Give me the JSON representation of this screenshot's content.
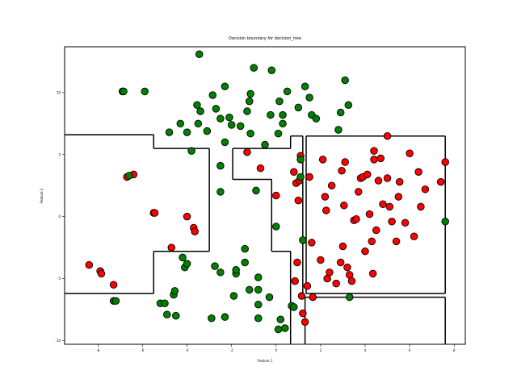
{
  "chart_data": {
    "type": "scatter",
    "title": "Decision boundary for decision_tree",
    "xlabel": "Feature 1",
    "ylabel": "Feature 2",
    "xlim": [
      -9.5,
      8.5
    ],
    "ylim": [
      -10.3,
      13.7
    ],
    "xticks": [
      -8,
      -6,
      -4,
      -2,
      0,
      2,
      4,
      6,
      8
    ],
    "yticks": [
      -10,
      -5,
      0,
      5,
      10
    ],
    "colors": {
      "red": "#ff0000",
      "green": "#008000",
      "edge": "#000000",
      "boundary": "#000000"
    },
    "series": [
      {
        "color": "red",
        "points": [
          [
            -8.4,
            -3.9
          ],
          [
            -7.9,
            -4.4
          ],
          [
            -7.85,
            -4.6
          ],
          [
            -7.3,
            -5.5
          ],
          [
            -6.7,
            3.2
          ],
          [
            -6.4,
            3.4
          ],
          [
            -5.5,
            0.3
          ],
          [
            -5.45,
            0.3
          ],
          [
            -4.7,
            -2.5
          ],
          [
            -4,
            0
          ],
          [
            -3.7,
            -0.9
          ],
          [
            -3.65,
            -1.2
          ],
          [
            -1.3,
            5.2
          ],
          [
            -0.7,
            3.9
          ],
          [
            0,
            1.7
          ],
          [
            0.8,
            3.6
          ],
          [
            0.9,
            2.7
          ],
          [
            0.95,
            -3.7
          ],
          [
            0.85,
            -5.2
          ],
          [
            1.0,
            1.3
          ],
          [
            1.05,
            2.9
          ],
          [
            1.1,
            4.9
          ],
          [
            1.15,
            -6.4
          ],
          [
            1.2,
            -7.8
          ],
          [
            1.3,
            -8.5
          ],
          [
            1.4,
            -5.6
          ],
          [
            1.5,
            3.2
          ],
          [
            1.6,
            -2.1
          ],
          [
            1.65,
            -6.5
          ],
          [
            2,
            -3.5
          ],
          [
            2.1,
            4.6
          ],
          [
            2.2,
            1.6
          ],
          [
            2.25,
            0.5
          ],
          [
            2.3,
            -5
          ],
          [
            2.4,
            -4.5
          ],
          [
            2.5,
            2.5
          ],
          [
            2.7,
            -5.4
          ],
          [
            2.9,
            -3.7
          ],
          [
            2.95,
            3.7
          ],
          [
            3,
            -2.4
          ],
          [
            3.05,
            0.9
          ],
          [
            3.1,
            4.4
          ],
          [
            3.2,
            -4.1
          ],
          [
            3.3,
            -4.7
          ],
          [
            3.4,
            -5.2
          ],
          [
            3.5,
            -0.3
          ],
          [
            3.6,
            -0.2
          ],
          [
            3.7,
            2
          ],
          [
            3.8,
            3.1
          ],
          [
            3.9,
            3.2
          ],
          [
            4,
            -2.8
          ],
          [
            4.1,
            3.4
          ],
          [
            4.2,
            0.2
          ],
          [
            4.3,
            -2
          ],
          [
            4.35,
            -4.6
          ],
          [
            4.4,
            4.6
          ],
          [
            4.4,
            5.3
          ],
          [
            4.5,
            -1.1
          ],
          [
            4.6,
            2.9
          ],
          [
            4.7,
            4.7
          ],
          [
            4.8,
            1
          ],
          [
            5.0,
            6.5
          ],
          [
            5.0,
            3.1
          ],
          [
            5.1,
            0.8
          ],
          [
            5.2,
            -0.4
          ],
          [
            5.4,
            -2
          ],
          [
            5.5,
            1.6
          ],
          [
            5.55,
            2.8
          ],
          [
            5.8,
            -0.5
          ],
          [
            6,
            5.1
          ],
          [
            6.2,
            -1.6
          ],
          [
            6.4,
            3.6
          ],
          [
            6.5,
            0.8
          ],
          [
            6.7,
            2.2
          ],
          [
            7.4,
            2.8
          ],
          [
            7.6,
            4.4
          ]
        ]
      },
      {
        "color": "green",
        "points": [
          [
            -7.3,
            -6.8
          ],
          [
            -7.2,
            -6.8
          ],
          [
            -6.9,
            10.1
          ],
          [
            -6.85,
            10.1
          ],
          [
            -6.6,
            3.3
          ],
          [
            -5.9,
            10.1
          ],
          [
            -5.2,
            -7.0
          ],
          [
            -5,
            -7.0
          ],
          [
            -4.9,
            -7.9
          ],
          [
            -4.8,
            6.8
          ],
          [
            -4.6,
            -6.3
          ],
          [
            -4.55,
            -6.0
          ],
          [
            -4.5,
            -8.0
          ],
          [
            -4.3,
            7.5
          ],
          [
            -4.2,
            -3.3
          ],
          [
            -4.1,
            -4.1
          ],
          [
            -4,
            -3.8
          ],
          [
            -4,
            6.8
          ],
          [
            -3.8,
            5.3
          ],
          [
            -3.55,
            9.0
          ],
          [
            -3.5,
            7.5
          ],
          [
            -3.45,
            13.1
          ],
          [
            -3.4,
            8.5
          ],
          [
            -3.1,
            6.9
          ],
          [
            -2.9,
            -8.2
          ],
          [
            -2.85,
            9.8
          ],
          [
            -2.75,
            -4
          ],
          [
            -2.7,
            8.7
          ],
          [
            -2.5,
            7.9
          ],
          [
            -2.5,
            -4.5
          ],
          [
            -2.5,
            2
          ],
          [
            -2.5,
            4.1
          ],
          [
            -2.3,
            6
          ],
          [
            -2.3,
            -8.1
          ],
          [
            -2.3,
            10.5
          ],
          [
            -2.1,
            8.0
          ],
          [
            -2,
            7.4
          ],
          [
            -1.9,
            -6.4
          ],
          [
            -1.8,
            -4.6
          ],
          [
            -1.8,
            -4.3
          ],
          [
            -1.6,
            7.3
          ],
          [
            -1.4,
            -3.7
          ],
          [
            -1.4,
            -2.6
          ],
          [
            -1.3,
            8.5
          ],
          [
            -1.2,
            -5.9
          ],
          [
            -1.15,
            6.7
          ],
          [
            -1.2,
            9.3
          ],
          [
            -1.15,
            9.9
          ],
          [
            -1,
            12
          ],
          [
            -0.9,
            2.1
          ],
          [
            -0.8,
            -4.9
          ],
          [
            -0.8,
            -5.9
          ],
          [
            -0.8,
            -7.1
          ],
          [
            -0.8,
            -8.2
          ],
          [
            -0.5,
            5.8
          ],
          [
            -0.3,
            -6.5
          ],
          [
            -0.25,
            8.2
          ],
          [
            -0.2,
            11.8
          ],
          [
            0,
            -0.8
          ],
          [
            0.1,
            -9.1
          ],
          [
            0.1,
            6.7
          ],
          [
            0.15,
            9.3
          ],
          [
            0.2,
            -8.3
          ],
          [
            0.3,
            8.2
          ],
          [
            0.3,
            7.5
          ],
          [
            0.4,
            -9.0
          ],
          [
            0.5,
            10.1
          ],
          [
            0.7,
            -7.2
          ],
          [
            0.8,
            -7.3
          ],
          [
            1.0,
            8.8
          ],
          [
            1.1,
            3.2
          ],
          [
            1.1,
            4.6
          ],
          [
            1.2,
            -1.9
          ],
          [
            1.3,
            10.5
          ],
          [
            1.5,
            9.6
          ],
          [
            1.6,
            8.2
          ],
          [
            1.8,
            7.9
          ],
          [
            2.8,
            7.0
          ],
          [
            2.9,
            8.4
          ],
          [
            3.1,
            11.0
          ],
          [
            3.25,
            9.0
          ],
          [
            3.3,
            -6.5
          ],
          [
            7.6,
            -0.4
          ]
        ]
      }
    ],
    "boundary_segments": [
      [
        [
          -9.5,
          6.6
        ],
        [
          -5.5,
          6.6
        ]
      ],
      [
        [
          -5.5,
          6.6
        ],
        [
          -5.5,
          5.5
        ]
      ],
      [
        [
          -5.5,
          5.5
        ],
        [
          -3,
          5.5
        ]
      ],
      [
        [
          -3,
          5.5
        ],
        [
          -3,
          -2.8
        ]
      ],
      [
        [
          -3,
          -2.8
        ],
        [
          -5.5,
          -2.8
        ]
      ],
      [
        [
          -5.5,
          -2.8
        ],
        [
          -5.5,
          -6.2
        ]
      ],
      [
        [
          -5.5,
          -6.2
        ],
        [
          -9.5,
          -6.2
        ]
      ],
      [
        [
          -1.95,
          5.5
        ],
        [
          0.65,
          5.5
        ]
      ],
      [
        [
          0.65,
          5.5
        ],
        [
          0.65,
          6.5
        ]
      ],
      [
        [
          0.65,
          6.5
        ],
        [
          1.2,
          6.5
        ]
      ],
      [
        [
          1.2,
          6.5
        ],
        [
          1.2,
          -6.2
        ]
      ],
      [
        [
          -1.95,
          5.5
        ],
        [
          -1.95,
          3
        ]
      ],
      [
        [
          -1.95,
          3
        ],
        [
          -0.2,
          3
        ]
      ],
      [
        [
          -0.2,
          3
        ],
        [
          -0.2,
          -2.8
        ]
      ],
      [
        [
          -0.2,
          -2.8
        ],
        [
          0.65,
          -2.8
        ]
      ],
      [
        [
          0.65,
          -2.8
        ],
        [
          0.65,
          -10.3
        ]
      ],
      [
        [
          1.35,
          6.5
        ],
        [
          7.6,
          6.5
        ]
      ],
      [
        [
          7.6,
          6.5
        ],
        [
          7.6,
          -6.2
        ]
      ],
      [
        [
          7.6,
          -6.2
        ],
        [
          1.35,
          -6.2
        ]
      ],
      [
        [
          1.35,
          -6.2
        ],
        [
          1.35,
          6.5
        ]
      ],
      [
        [
          1.3,
          -6.5
        ],
        [
          7.6,
          -6.5
        ]
      ],
      [
        [
          7.6,
          -6.5
        ],
        [
          7.6,
          -10.3
        ]
      ],
      [
        [
          1.3,
          -6.5
        ],
        [
          1.3,
          -10.3
        ]
      ]
    ]
  }
}
